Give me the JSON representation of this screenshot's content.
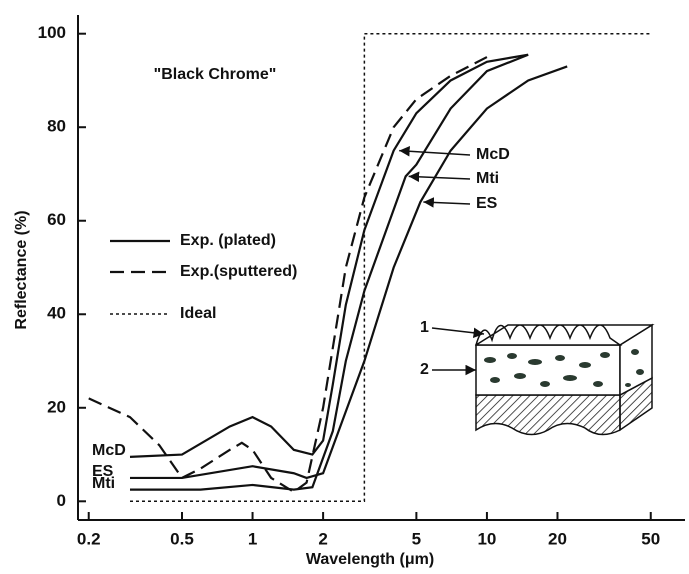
{
  "chart_data": {
    "type": "line",
    "title": "\"Black Chrome\"",
    "x_label": "Wavelength (μm)",
    "y_label": "Reflectance (%)",
    "x_scale": "log",
    "xlim": [
      0.18,
      70
    ],
    "ylim": [
      -4,
      104
    ],
    "xticks": [
      0.2,
      0.5,
      1,
      2,
      5,
      10,
      20,
      50
    ],
    "yticks": [
      0,
      20,
      40,
      60,
      80,
      100
    ],
    "color": "#111111",
    "legend": [
      {
        "label": "Exp. (plated)",
        "style": "solid"
      },
      {
        "label": "Exp.(sputtered)",
        "style": "dashed"
      },
      {
        "label": "Ideal",
        "style": "dotted"
      }
    ],
    "series": [
      {
        "name": "McD",
        "style": "solid",
        "x": [
          0.3,
          0.5,
          0.8,
          1.0,
          1.2,
          1.5,
          1.8,
          2.0,
          2.2,
          2.5,
          3,
          4,
          5,
          7,
          10,
          15
        ],
        "values": [
          9.5,
          10,
          16,
          18,
          16,
          11,
          10,
          13,
          25,
          42,
          58,
          75,
          83,
          90,
          94,
          95.5
        ]
      },
      {
        "name": "ES",
        "style": "solid",
        "x": [
          0.3,
          0.5,
          1.0,
          1.5,
          1.7,
          2.0,
          3,
          4,
          5.2,
          7,
          10,
          15,
          22
        ],
        "values": [
          5,
          5,
          7.5,
          6,
          5,
          6,
          30,
          50,
          64,
          75,
          84,
          90,
          93
        ]
      },
      {
        "name": "Mti",
        "style": "solid",
        "x": [
          0.3,
          0.6,
          1.0,
          1.5,
          1.8,
          2.2,
          2.5,
          3,
          4.5,
          5,
          7,
          10,
          15
        ],
        "values": [
          2.5,
          2.5,
          3.5,
          2.5,
          3,
          15,
          30,
          45,
          69.5,
          72,
          84,
          92,
          95.5
        ]
      },
      {
        "name": "Exp.(sputtered)",
        "style": "dashed",
        "x": [
          0.2,
          0.3,
          0.4,
          0.5,
          0.6,
          0.8,
          0.9,
          1.0,
          1.2,
          1.5,
          1.7,
          2.0,
          2.5,
          3,
          4,
          5,
          7,
          10
        ],
        "values": [
          22,
          18,
          12,
          5,
          7,
          11,
          12.5,
          11,
          5,
          2,
          4,
          20,
          50,
          65,
          80,
          86,
          91,
          95
        ]
      },
      {
        "name": "Ideal",
        "style": "dotted",
        "x": [
          0.3,
          3,
          3,
          50
        ],
        "values": [
          0,
          0,
          100,
          100
        ]
      }
    ],
    "annotations": [
      {
        "text": "McD",
        "x": 4.1,
        "y": 75
      },
      {
        "text": "Mti",
        "x": 4.5,
        "y": 69.5
      },
      {
        "text": "ES",
        "x": 5.2,
        "y": 64
      }
    ],
    "inset_labels": [
      "1",
      "2"
    ]
  }
}
